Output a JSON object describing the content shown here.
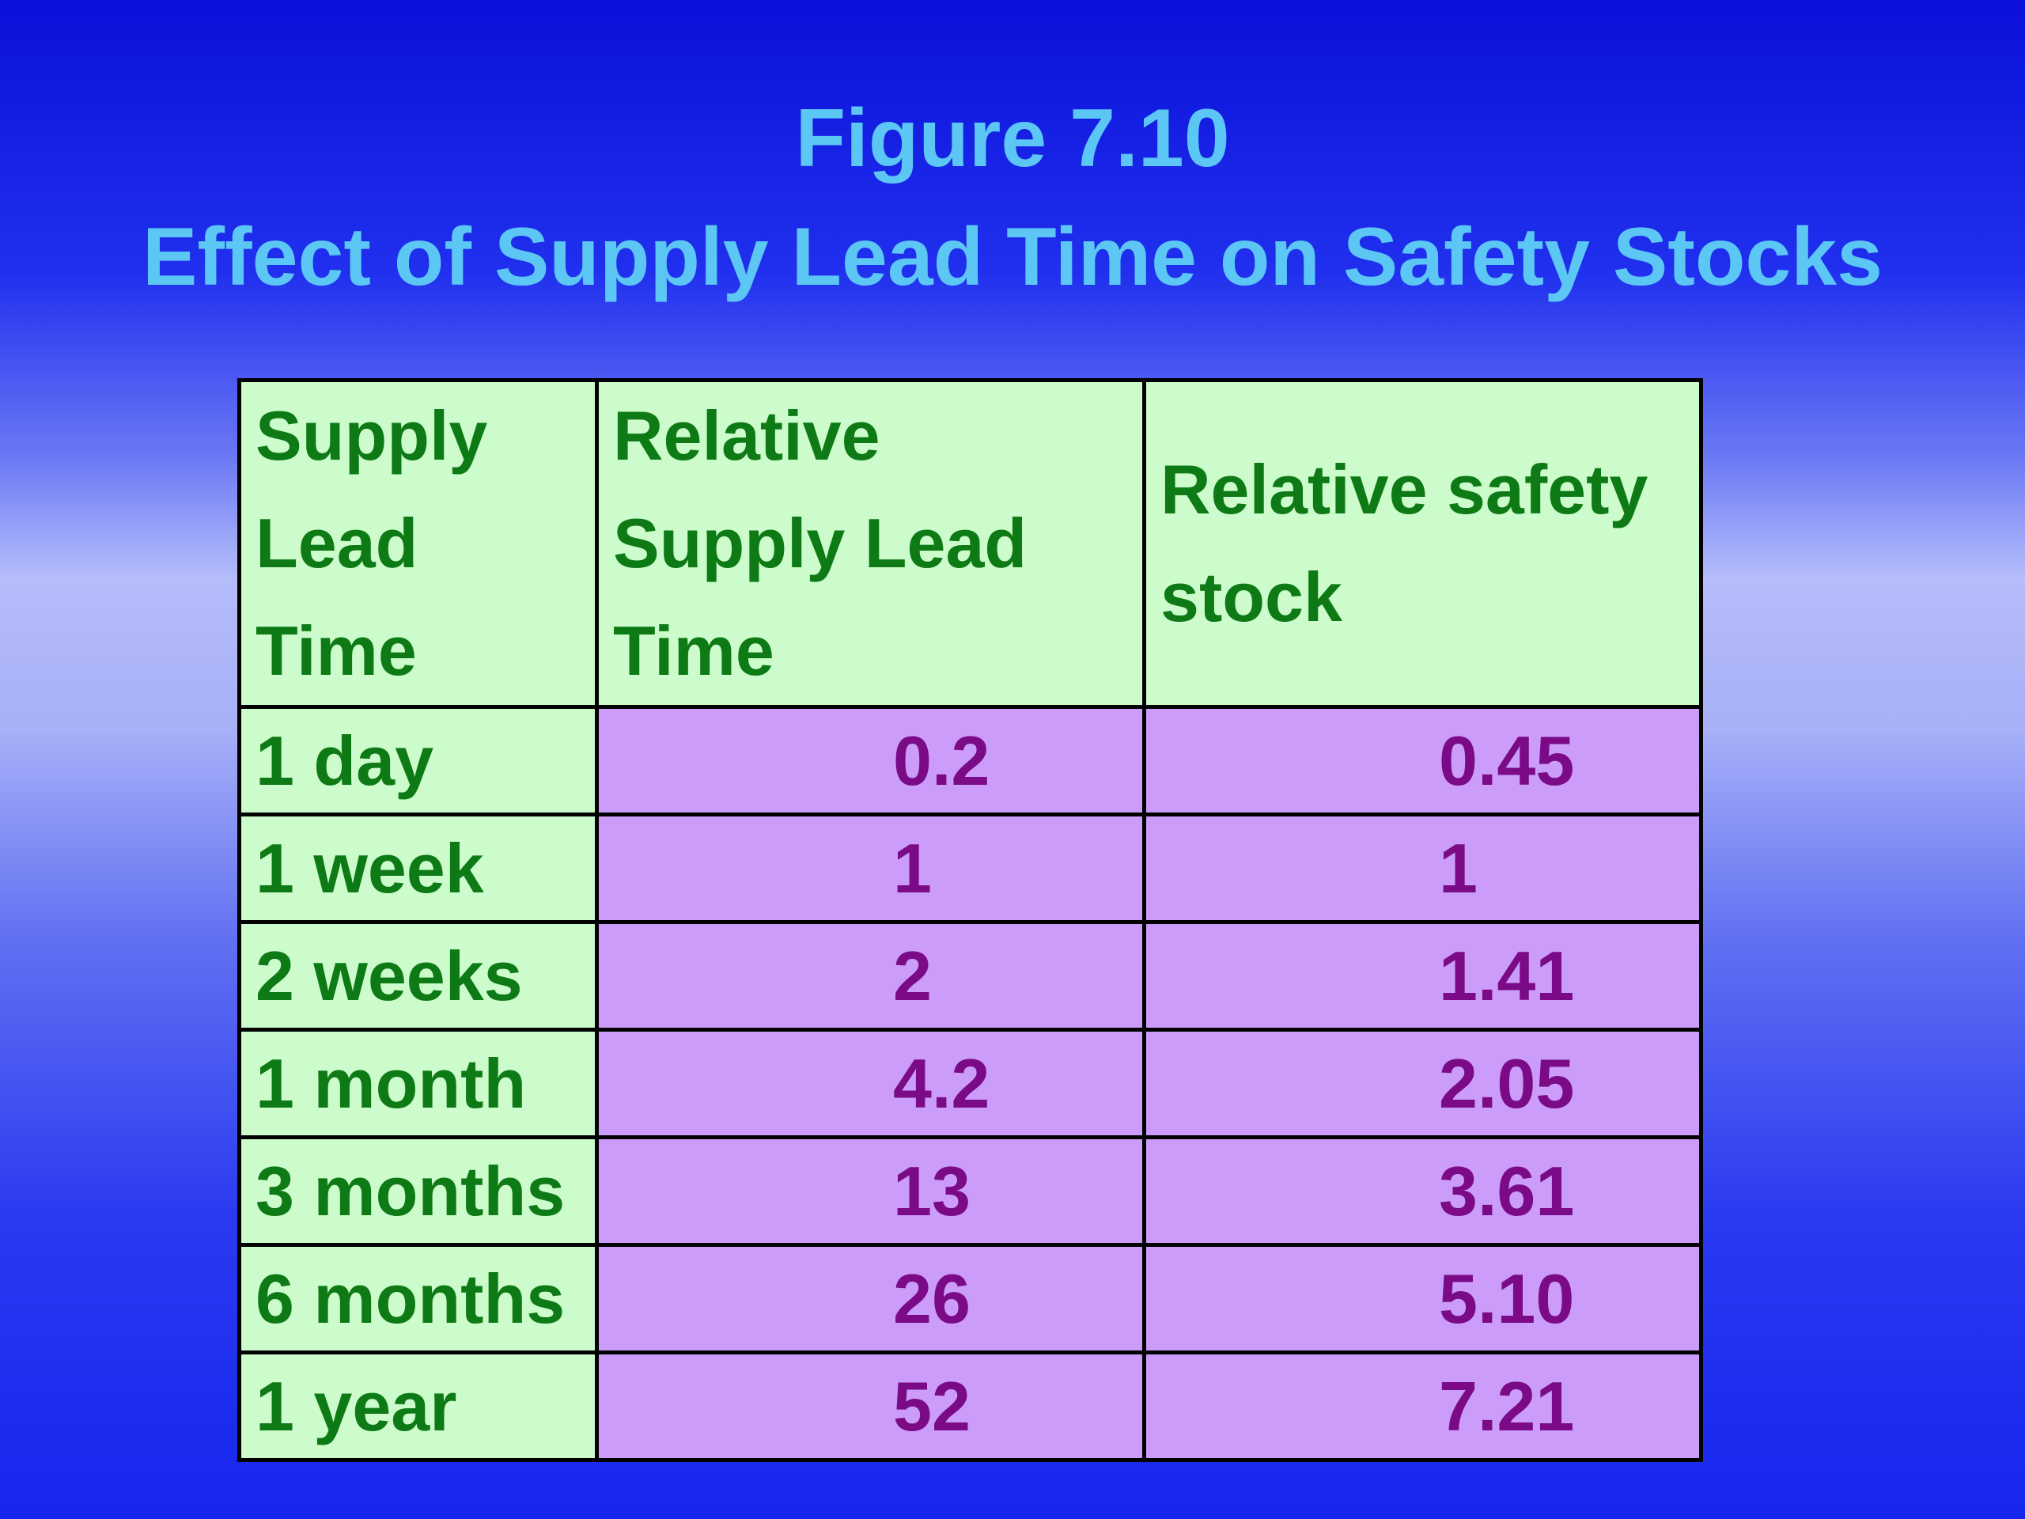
{
  "title": {
    "line1": "Figure 7.10",
    "line2": "Effect of Supply Lead Time on Safety Stocks"
  },
  "table": {
    "headers": [
      [
        "Supply",
        "Lead",
        "Time"
      ],
      [
        "Relative",
        "Supply Lead",
        "Time"
      ],
      [
        "Relative safety",
        "stock"
      ]
    ],
    "rows": [
      [
        "1 day",
        "0.2",
        "0.45"
      ],
      [
        "1 week",
        "1",
        "1"
      ],
      [
        "2 weeks",
        "2",
        "1.41"
      ],
      [
        "1 month",
        "4.2",
        "2.05"
      ],
      [
        "3 months",
        "13",
        "3.61"
      ],
      [
        "6 months",
        "26",
        "5.10"
      ],
      [
        "1 year",
        "52",
        "7.21"
      ]
    ]
  },
  "colors": {
    "title": "#5cc6f4",
    "header_bg": "#ccfccc",
    "label_text": "#0e7a16",
    "value_bg": "#cc9cfa",
    "value_text": "#7a0a86"
  }
}
